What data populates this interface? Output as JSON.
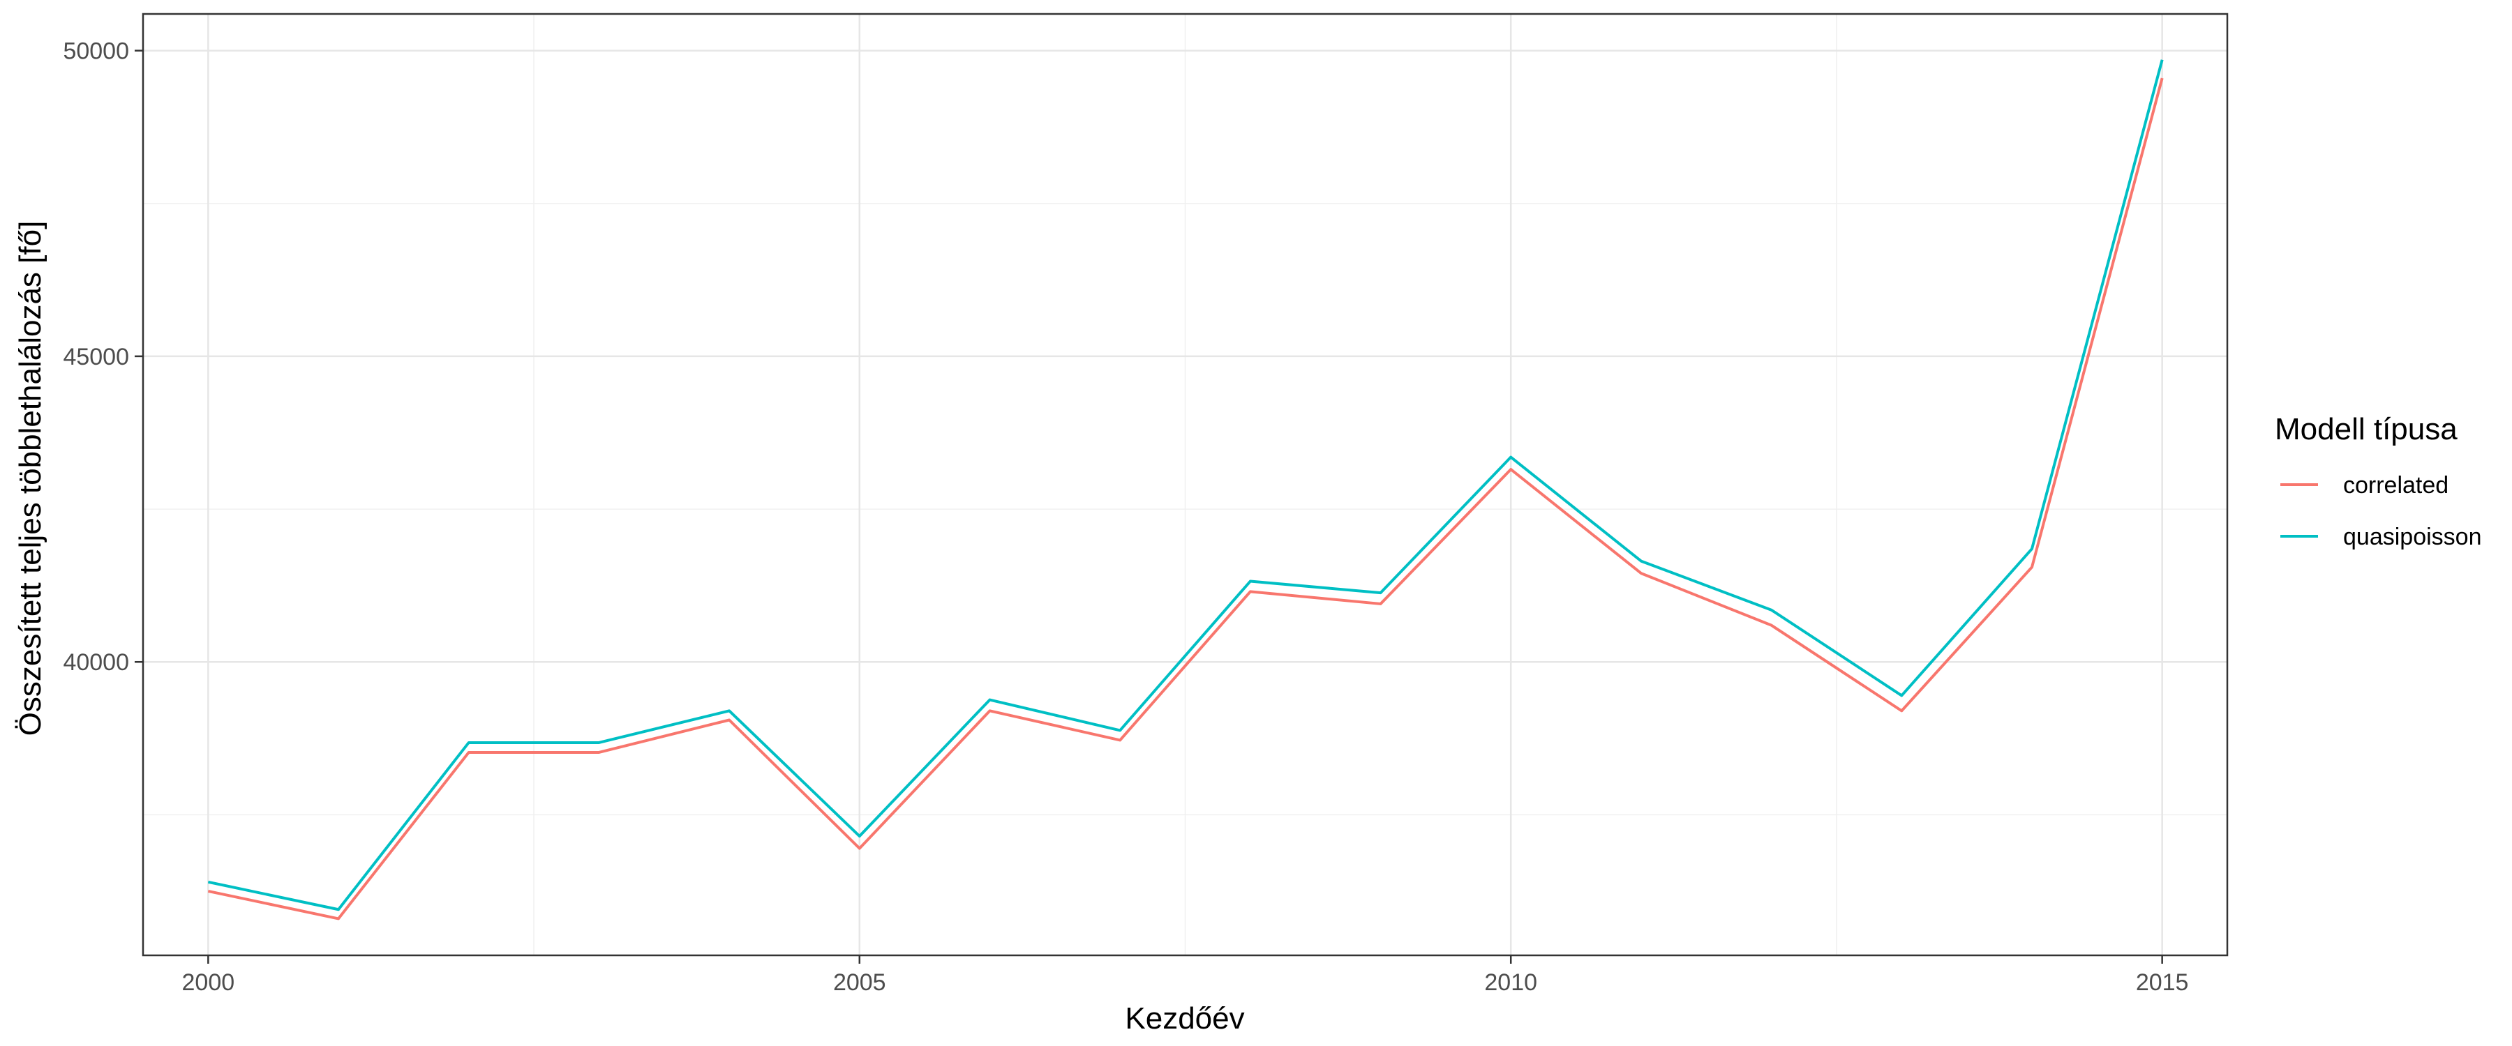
{
  "chart_data": {
    "type": "line",
    "title": "",
    "xlabel": "Kezdőév",
    "ylabel": "Összesített teljes többlethalálozás [fő]",
    "xlim": [
      1999.5,
      2015.5
    ],
    "ylim": [
      35200,
      50600
    ],
    "x_ticks": [
      2000,
      2005,
      2010,
      2015
    ],
    "y_ticks": [
      40000,
      45000,
      50000
    ],
    "x_tick_labels": [
      "2000",
      "2005",
      "2010",
      "2015"
    ],
    "y_tick_labels": [
      "40000",
      "45000",
      "50000"
    ],
    "grid": true,
    "legend": {
      "title": "Modell típusa",
      "position": "right"
    },
    "x": [
      2000,
      2001,
      2002,
      2003,
      2004,
      2005,
      2006,
      2007,
      2008,
      2009,
      2010,
      2011,
      2012,
      2013,
      2014,
      2015
    ],
    "series": [
      {
        "name": "correlated",
        "color": "#F8766D",
        "values": [
          36250,
          35800,
          38520,
          38520,
          39050,
          36950,
          39200,
          38720,
          41150,
          40950,
          43150,
          41450,
          40600,
          39200,
          41550,
          49550
        ]
      },
      {
        "name": "quasipoisson",
        "color": "#00BFC4",
        "values": [
          36400,
          35950,
          38680,
          38680,
          39200,
          37150,
          39380,
          38880,
          41320,
          41130,
          43350,
          41650,
          40850,
          39450,
          41850,
          49850
        ]
      }
    ]
  }
}
